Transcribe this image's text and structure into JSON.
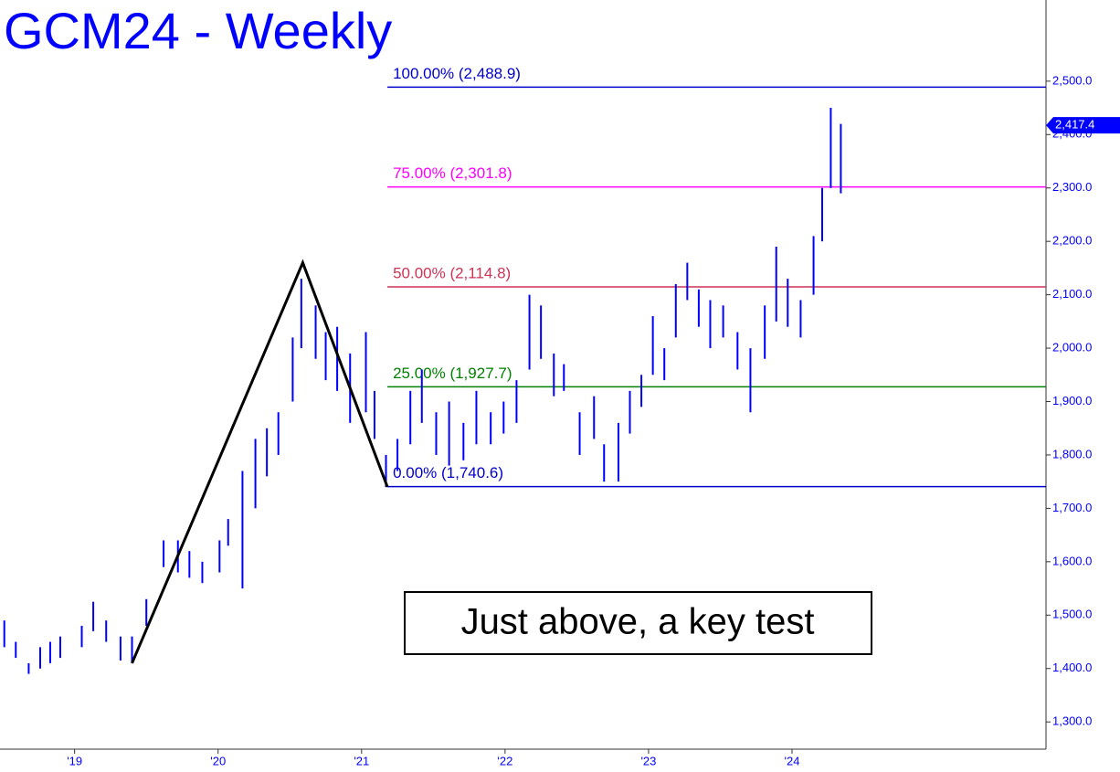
{
  "chart_data": {
    "type": "ohlc",
    "title": "GCM24 - Weekly",
    "annotation": "Just above, a key test",
    "color": "#0000ff",
    "x": [
      2018.51,
      2018.59,
      2018.68,
      2018.76,
      2018.83,
      2018.9,
      2019.05,
      2019.13,
      2019.22,
      2019.32,
      2019.4,
      2019.5,
      2019.62,
      2019.72,
      2019.8,
      2019.89,
      2020.01,
      2020.07,
      2020.17,
      2020.26,
      2020.34,
      2020.42,
      2020.52,
      2020.58,
      2020.68,
      2020.75,
      2020.83,
      2020.92,
      2021.03,
      2021.09,
      2021.17,
      2021.25,
      2021.34,
      2021.42,
      2021.52,
      2021.61,
      2021.71,
      2021.8,
      2021.9,
      2021.99,
      2022.08,
      2022.17,
      2022.25,
      2022.34,
      2022.41,
      2022.52,
      2022.62,
      2022.69,
      2022.79,
      2022.87,
      2022.95,
      2023.03,
      2023.11,
      2023.19,
      2023.27,
      2023.35,
      2023.43,
      2023.52,
      2023.62,
      2023.71,
      2023.81,
      2023.89,
      2023.97,
      2024.06,
      2024.15,
      2024.21,
      2024.27,
      2024.34
    ],
    "high": [
      1490,
      1450,
      1410,
      1440,
      1450,
      1460,
      1480,
      1525,
      1490,
      1460,
      1460,
      1530,
      1640,
      1640,
      1620,
      1600,
      1640,
      1680,
      1770,
      1830,
      1850,
      1880,
      2020,
      2130,
      2080,
      2030,
      2040,
      1990,
      2030,
      1920,
      1800,
      1830,
      1920,
      1960,
      1880,
      1900,
      1860,
      1920,
      1880,
      1900,
      1940,
      2100,
      2080,
      1990,
      1970,
      1880,
      1910,
      1820,
      1860,
      1920,
      1950,
      2060,
      2000,
      2120,
      2160,
      2110,
      2090,
      2080,
      2030,
      2000,
      2080,
      2190,
      2130,
      2090,
      2210,
      2300,
      2450,
      2420
    ],
    "low": [
      1440,
      1420,
      1390,
      1400,
      1410,
      1420,
      1440,
      1470,
      1450,
      1415,
      1410,
      1480,
      1590,
      1580,
      1570,
      1560,
      1580,
      1630,
      1550,
      1700,
      1760,
      1800,
      1900,
      2000,
      1980,
      1940,
      1920,
      1860,
      1880,
      1830,
      1740,
      1770,
      1820,
      1860,
      1800,
      1780,
      1790,
      1820,
      1820,
      1840,
      1860,
      1960,
      1980,
      1910,
      1920,
      1800,
      1830,
      1750,
      1750,
      1840,
      1890,
      1950,
      1940,
      2020,
      2090,
      2040,
      2000,
      2020,
      1960,
      1880,
      1980,
      2050,
      2040,
      2020,
      2100,
      2200,
      2300,
      2290
    ],
    "pattern": {
      "color": "#000000",
      "x": [
        2019.4,
        2020.59,
        2021.18
      ],
      "values": [
        1410,
        2160,
        1740
      ]
    },
    "fib_start": 2021.18,
    "levels": [
      {
        "label": "100.00% (2,488.9)",
        "value": 2488.9,
        "color": "#0000cc"
      },
      {
        "label": "75.00% (2,301.8)",
        "value": 2301.8,
        "color": "#ff00ff"
      },
      {
        "label": "50.00% (2,114.8)",
        "value": 2114.8,
        "color": "#cc3355"
      },
      {
        "label": "25.00% (1,927.7)",
        "value": 1927.7,
        "color": "#008000"
      },
      {
        "label": "0.00% (1,740.6)",
        "value": 1740.6,
        "color": "#0000cc"
      }
    ],
    "last": {
      "value": 2417.4,
      "label": "2,417.4"
    },
    "xlim": [
      2018.48,
      2025.77
    ],
    "ylim": [
      1249,
      2652
    ],
    "xticks": [
      {
        "value": 2019,
        "label": "'19"
      },
      {
        "value": 2020,
        "label": "'20"
      },
      {
        "value": 2021,
        "label": "'21"
      },
      {
        "value": 2022,
        "label": "'22"
      },
      {
        "value": 2023,
        "label": "'23"
      },
      {
        "value": 2024,
        "label": "'24"
      }
    ],
    "yticks": [
      {
        "value": 1300,
        "label": "1,300.0"
      },
      {
        "value": 1400,
        "label": "1,400.0"
      },
      {
        "value": 1500,
        "label": "1,500.0"
      },
      {
        "value": 1600,
        "label": "1,600.0"
      },
      {
        "value": 1700,
        "label": "1,700.0"
      },
      {
        "value": 1800,
        "label": "1,800.0"
      },
      {
        "value": 1900,
        "label": "1,900.0"
      },
      {
        "value": 2000,
        "label": "2,000.0"
      },
      {
        "value": 2100,
        "label": "2,100.0"
      },
      {
        "value": 2200,
        "label": "2,200.0"
      },
      {
        "value": 2300,
        "label": "2,300.0"
      },
      {
        "value": 2400,
        "label": "2,400.0"
      },
      {
        "value": 2500,
        "label": "2,500.0"
      }
    ]
  }
}
